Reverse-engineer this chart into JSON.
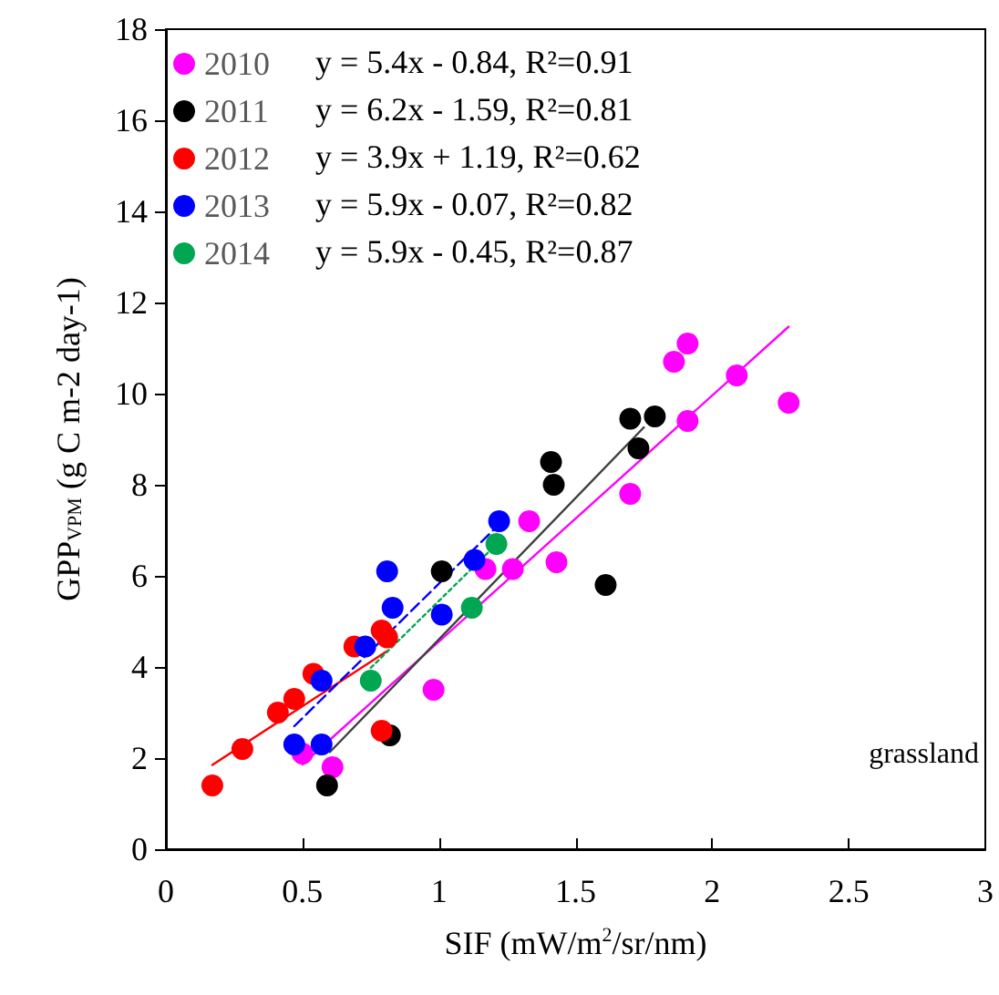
{
  "chart_data": {
    "type": "scatter",
    "xlabel": "SIF (mW/m$^{2}$/sr/nm)",
    "ylabel": "GPP$_{VPM}$ (g C m-2 day-1)",
    "xlim": [
      0,
      3
    ],
    "xticks": [
      0,
      0.5,
      1,
      1.5,
      2,
      2.5,
      3
    ],
    "ylim": [
      0,
      18
    ],
    "yticks": [
      0,
      2,
      4,
      6,
      8,
      10,
      12,
      14,
      16,
      18
    ],
    "grid": false,
    "legend": "top left",
    "marker": "circle",
    "series": [
      {
        "name": "2010",
        "color": "#ff00ff",
        "x": [
          0.5,
          0.61,
          0.98,
          1.17,
          1.27,
          1.33,
          1.43,
          1.7,
          1.86,
          1.91,
          1.91,
          2.09,
          2.28
        ],
        "values": [
          2.1,
          1.8,
          3.5,
          6.15,
          6.15,
          7.2,
          6.3,
          7.8,
          10.7,
          11.1,
          9.4,
          10.4,
          9.8
        ]
      },
      {
        "name": "2011",
        "color": "#000000",
        "x": [
          0.59,
          0.82,
          1.01,
          1.41,
          1.42,
          1.61,
          1.7,
          1.73,
          1.79
        ],
        "values": [
          1.4,
          2.5,
          6.1,
          8.5,
          8.0,
          5.8,
          9.45,
          8.8,
          9.5
        ]
      },
      {
        "name": "2012",
        "color": "#ff0000",
        "x": [
          0.17,
          0.28,
          0.41,
          0.47,
          0.54,
          0.69,
          0.79,
          0.81,
          0.79
        ],
        "values": [
          1.4,
          2.2,
          3.0,
          3.3,
          3.85,
          4.45,
          4.8,
          4.65,
          2.6
        ]
      },
      {
        "name": "2013",
        "color": "#0000ff",
        "x": [
          0.47,
          0.57,
          0.57,
          0.73,
          0.81,
          0.83,
          1.01,
          1.13,
          1.22
        ],
        "values": [
          2.3,
          2.3,
          3.7,
          4.45,
          6.1,
          5.3,
          5.15,
          6.35,
          7.2
        ]
      },
      {
        "name": "2014",
        "color": "#00a651",
        "x": [
          0.75,
          1.12,
          1.21
        ],
        "values": [
          3.7,
          5.3,
          6.7
        ]
      },
      {
        "type": "line",
        "marker": "none",
        "color": "#ff00ff",
        "line_style": "solid",
        "x": [
          0.5,
          2.28
        ],
        "values": [
          1.86,
          11.47
        ]
      },
      {
        "type": "line",
        "marker": "none",
        "color": "#404040",
        "line_style": "solid",
        "x": [
          0.6,
          1.75
        ],
        "values": [
          2.13,
          9.26
        ]
      },
      {
        "type": "line",
        "marker": "none",
        "color": "#ff0000",
        "line_style": "solid",
        "x": [
          0.17,
          0.81
        ],
        "values": [
          1.85,
          4.35
        ]
      },
      {
        "type": "line",
        "marker": "none",
        "color": "#0000ff",
        "line_style": "dashed",
        "x": [
          0.47,
          1.22
        ],
        "values": [
          2.7,
          7.13
        ]
      },
      {
        "type": "line",
        "marker": "none",
        "color": "#00a651",
        "line_style": "dotted",
        "x": [
          0.75,
          1.22
        ],
        "values": [
          3.98,
          6.75
        ]
      }
    ],
    "annotations": [
      "y = 5.4x - 0.84, R²=0.91",
      "y = 6.2x - 1.59, R²=0.81",
      "y = 3.9x + 1.19, R²=0.62",
      "y = 5.9x - 0.07, R²=0.82",
      "y = 5.9x - 0.45, R²=0.87",
      "grassland"
    ]
  }
}
